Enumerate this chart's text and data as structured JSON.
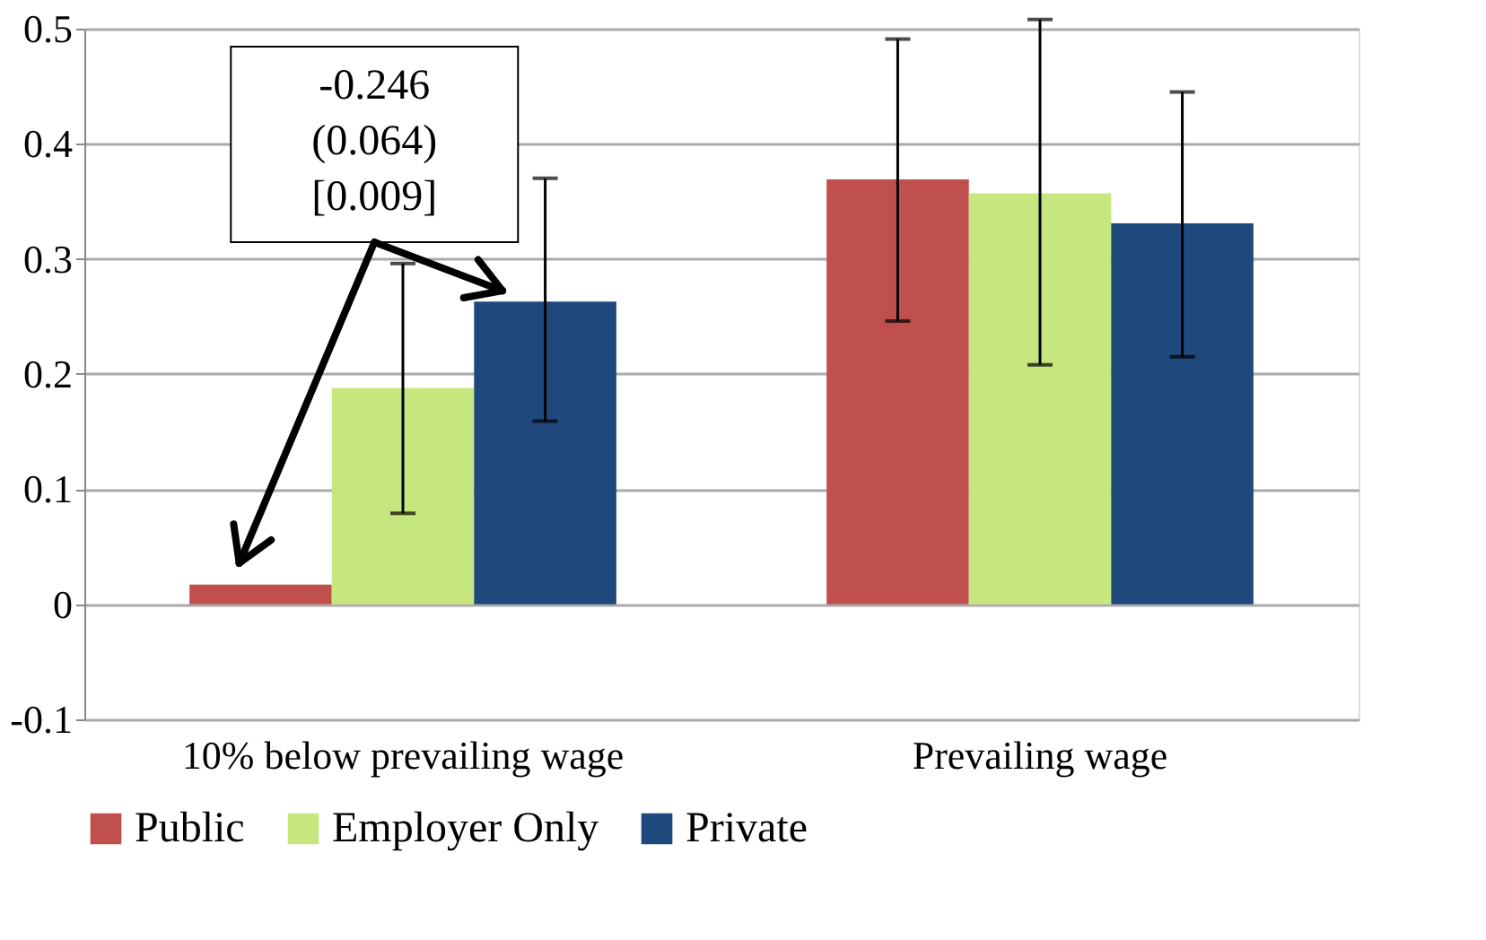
{
  "chart_data": {
    "type": "bar",
    "categories": [
      "10% below prevailing wage",
      "Prevailing wage"
    ],
    "series": [
      {
        "name": "Public",
        "color": "#c0504d",
        "values": [
          0.017,
          0.369
        ],
        "errors": [
          null,
          [
            0.246,
            0.491
          ]
        ]
      },
      {
        "name": "Employer Only",
        "color": "#c6e67e",
        "values": [
          0.188,
          0.357
        ],
        "errors": [
          [
            0.079,
            0.296
          ],
          [
            0.208,
            0.508
          ]
        ]
      },
      {
        "name": "Private",
        "color": "#1f497d",
        "values": [
          0.263,
          0.331
        ],
        "errors": [
          [
            0.159,
            0.37
          ],
          [
            0.215,
            0.445
          ]
        ]
      }
    ],
    "ylim": [
      -0.1,
      0.5
    ],
    "yticks": [
      -0.1,
      0,
      0.1,
      0.2,
      0.3,
      0.4,
      0.5
    ],
    "grid": "y",
    "legend": "bottom",
    "annotations": [
      "-0.246\n(0.064)\n[0.009]"
    ]
  }
}
